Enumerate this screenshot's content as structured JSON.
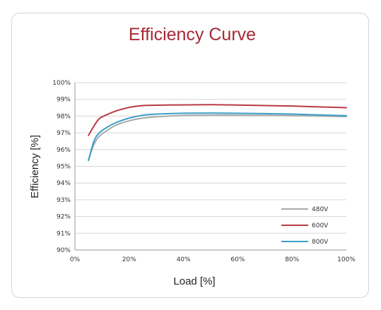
{
  "chart_data": {
    "type": "line",
    "title": "Efficiency Curve",
    "xlabel": "Load [%]",
    "ylabel": "Efficiency [%]",
    "xlim": [
      0,
      100
    ],
    "ylim": [
      90,
      100
    ],
    "x_ticks": [
      "0%",
      "20%",
      "40%",
      "60%",
      "80%",
      "100%"
    ],
    "y_ticks": [
      "90%",
      "91%",
      "92%",
      "93%",
      "94%",
      "95%",
      "96%",
      "97%",
      "98%",
      "99%",
      "100%"
    ],
    "grid": true,
    "legend_position": "bottom-right",
    "series": [
      {
        "name": "480V",
        "color": "#a9a9ab",
        "points": [
          [
            5,
            95.4
          ],
          [
            7,
            96.3
          ],
          [
            9,
            96.8
          ],
          [
            12,
            97.15
          ],
          [
            15,
            97.45
          ],
          [
            20,
            97.72
          ],
          [
            25,
            97.88
          ],
          [
            30,
            97.96
          ],
          [
            40,
            98.04
          ],
          [
            50,
            98.06
          ],
          [
            60,
            98.06
          ],
          [
            70,
            98.05
          ],
          [
            80,
            98.03
          ],
          [
            90,
            98.0
          ],
          [
            100,
            97.97
          ]
        ]
      },
      {
        "name": "600V",
        "color": "#b83a45",
        "points": [
          [
            5,
            96.85
          ],
          [
            7,
            97.4
          ],
          [
            9,
            97.85
          ],
          [
            12,
            98.1
          ],
          [
            15,
            98.3
          ],
          [
            20,
            98.52
          ],
          [
            25,
            98.63
          ],
          [
            30,
            98.65
          ],
          [
            40,
            98.67
          ],
          [
            50,
            98.68
          ],
          [
            60,
            98.66
          ],
          [
            70,
            98.63
          ],
          [
            80,
            98.6
          ],
          [
            90,
            98.55
          ],
          [
            100,
            98.5
          ]
        ]
      },
      {
        "name": "800V",
        "color": "#3b9ec9",
        "points": [
          [
            5,
            95.35
          ],
          [
            7,
            96.5
          ],
          [
            9,
            97.0
          ],
          [
            12,
            97.35
          ],
          [
            15,
            97.6
          ],
          [
            20,
            97.88
          ],
          [
            25,
            98.05
          ],
          [
            30,
            98.12
          ],
          [
            40,
            98.17
          ],
          [
            50,
            98.18
          ],
          [
            60,
            98.17
          ],
          [
            70,
            98.15
          ],
          [
            80,
            98.12
          ],
          [
            90,
            98.07
          ],
          [
            100,
            98.02
          ]
        ]
      }
    ]
  }
}
